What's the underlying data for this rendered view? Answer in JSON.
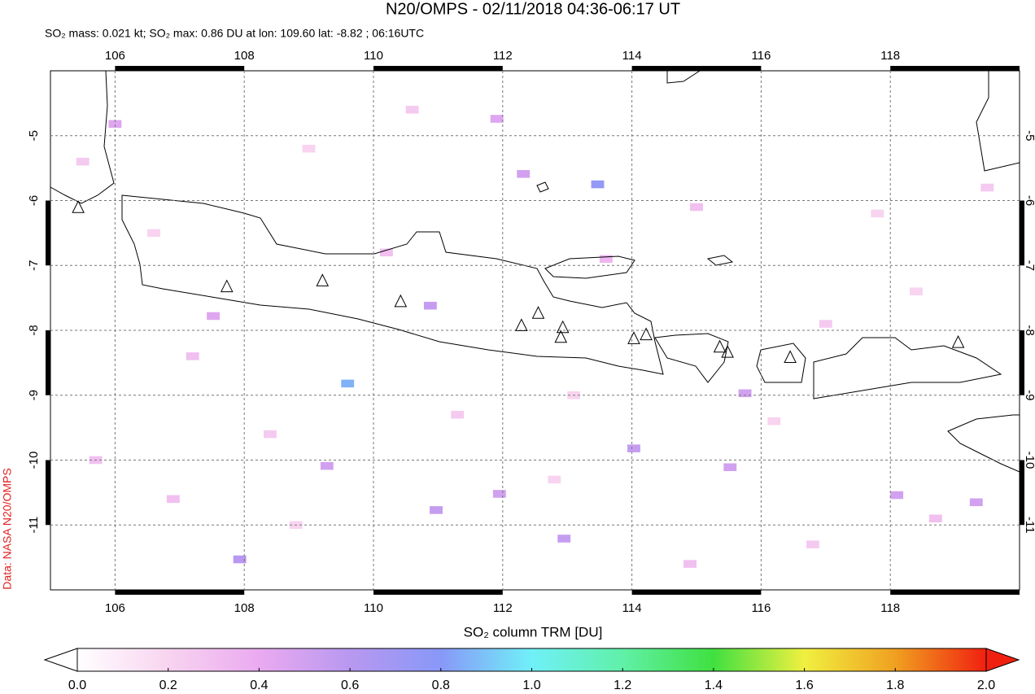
{
  "chart_data": {
    "type": "map",
    "title": "N20/OMPS - 02/11/2018 04:36-06:17 UT",
    "subtitle": "SO₂ mass: 0.021 kt; SO₂ max: 0.86 DU at lon: 109.60 lat: -8.82 ; 06:16UTC",
    "credit": "Data: NASA N20/OMPS",
    "xlim": [
      105,
      120
    ],
    "ylim": [
      -12,
      -4
    ],
    "xticks": [
      106,
      108,
      110,
      112,
      114,
      116,
      118
    ],
    "yticks": [
      -5,
      -6,
      -7,
      -8,
      -9,
      -10,
      -11
    ],
    "grid": true,
    "volcanoes": {
      "lon": [
        105.43,
        107.73,
        109.21,
        110.42,
        112.29,
        112.55,
        112.93,
        112.9,
        114.03,
        114.22,
        115.36,
        115.48,
        116.45,
        119.05
      ],
      "lat": [
        -6.11,
        -7.33,
        -7.24,
        -7.56,
        -7.93,
        -7.74,
        -7.96,
        -8.11,
        -8.13,
        -8.07,
        -8.26,
        -8.34,
        -8.42,
        -8.19
      ]
    },
    "pixels": {
      "lon": [
        113.47,
        109.6,
        107.52,
        109.28,
        110.97,
        112.95,
        115.52,
        118.1,
        119.33,
        111.91,
        112.32,
        110.88,
        115.75,
        107.93,
        111.95,
        114.03,
        106.0,
        105.5,
        106.6,
        107.2,
        108.4,
        109.0,
        110.2,
        111.3,
        112.8,
        113.6,
        114.9,
        116.2,
        117.0,
        117.8,
        118.7,
        119.5,
        106.9,
        108.8,
        110.6,
        113.1,
        115.0,
        116.8,
        118.4,
        105.7
      ],
      "lat": [
        -5.75,
        -8.82,
        -7.78,
        -10.09,
        -10.77,
        -11.21,
        -10.11,
        -10.54,
        -10.65,
        -4.74,
        -5.59,
        -7.62,
        -8.97,
        -11.53,
        -10.52,
        -9.82,
        -4.82,
        -5.4,
        -6.5,
        -8.4,
        -9.6,
        -5.2,
        -6.8,
        -9.3,
        -10.3,
        -6.9,
        -11.6,
        -9.4,
        -7.9,
        -6.2,
        -10.9,
        -5.8,
        -10.6,
        -11.0,
        -4.6,
        -9.0,
        -6.1,
        -11.3,
        -7.4,
        -10.0
      ],
      "values": [
        0.75,
        0.86,
        0.45,
        0.5,
        0.55,
        0.55,
        0.5,
        0.5,
        0.5,
        0.45,
        0.5,
        0.55,
        0.5,
        0.6,
        0.5,
        0.55,
        0.45,
        0.25,
        0.2,
        0.3,
        0.25,
        0.2,
        0.3,
        0.25,
        0.2,
        0.35,
        0.3,
        0.2,
        0.25,
        0.2,
        0.3,
        0.25,
        0.3,
        0.2,
        0.25,
        0.2,
        0.3,
        0.25,
        0.2,
        0.3
      ]
    },
    "colorbar": {
      "label": "SO₂ column TRM [DU]",
      "lim": [
        0,
        2
      ],
      "ticks": [
        {
          "value": 0,
          "label": "0.0"
        },
        {
          "value": 0.2,
          "label": "0.2"
        },
        {
          "value": 0.4,
          "label": "0.4"
        },
        {
          "value": 0.6,
          "label": "0.6"
        },
        {
          "value": 0.8,
          "label": "0.8"
        },
        {
          "value": 1,
          "label": "1.0"
        },
        {
          "value": 1.2,
          "label": "1.2"
        },
        {
          "value": 1.4,
          "label": "1.4"
        },
        {
          "value": 1.6,
          "label": "1.6"
        },
        {
          "value": 1.8,
          "label": "1.8"
        },
        {
          "value": 2,
          "label": "2.0"
        }
      ],
      "colors": [
        "#ffffff",
        "#f8d4f0",
        "#eaaaf0",
        "#b898f0",
        "#8898f8",
        "#70f0f8",
        "#60f0a8",
        "#40e040",
        "#f0f040",
        "#f0a020",
        "#f02010"
      ]
    }
  }
}
